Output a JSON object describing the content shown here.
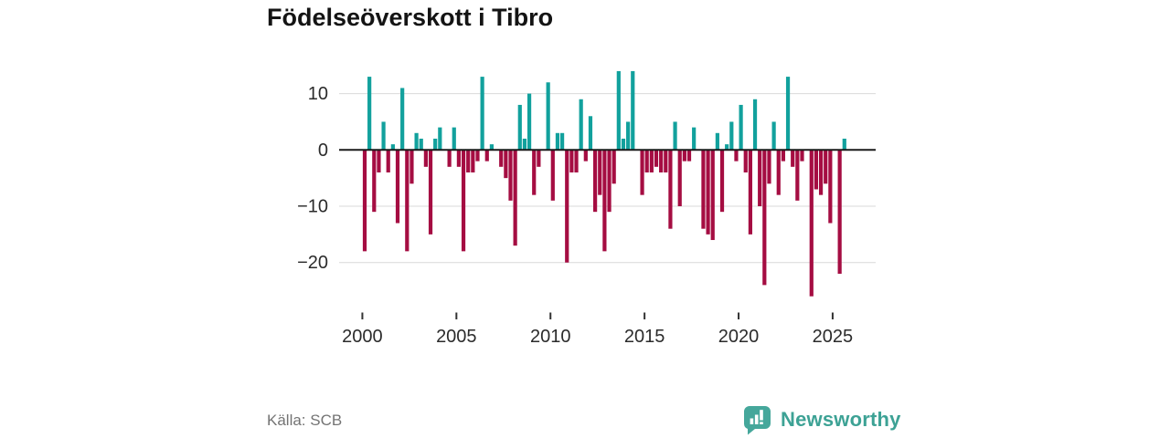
{
  "title": "Födelseöverskott i Tibro",
  "source": "Källa: SCB",
  "branding": {
    "name": "Newsworthy"
  },
  "y_axis": {
    "ticks": [
      {
        "label": "10",
        "value": 10
      },
      {
        "label": "0",
        "value": 0
      },
      {
        "label": "−10",
        "value": -10
      },
      {
        "label": "−20",
        "value": -20
      }
    ]
  },
  "x_axis": {
    "ticks": [
      {
        "label": "2000",
        "year": 2000
      },
      {
        "label": "2005",
        "year": 2005
      },
      {
        "label": "2010",
        "year": 2010
      },
      {
        "label": "2015",
        "year": 2015
      },
      {
        "label": "2020",
        "year": 2020
      },
      {
        "label": "2025",
        "year": 2025
      }
    ]
  },
  "chart_data": {
    "type": "bar",
    "title": "Födelseöverskott i Tibro",
    "frequency": "quarterly",
    "start_period": "2000Q1",
    "end_period": "2025Q3",
    "xlabel": "",
    "ylabel": "",
    "ylim": [
      -27,
      15
    ],
    "grid": true,
    "legend": "none",
    "positive_color": "#12a19d",
    "negative_color": "#a50d42",
    "values": [
      -18,
      13,
      -11,
      -4,
      5,
      -4,
      1,
      -13,
      11,
      -18,
      -6,
      3,
      2,
      -3,
      -15,
      2,
      4,
      0,
      -3,
      4,
      -3,
      -18,
      -4,
      -4,
      -2,
      13,
      -2,
      1,
      0,
      -3,
      -5,
      -9,
      -17,
      8,
      2,
      10,
      -8,
      -3,
      0,
      12,
      -9,
      3,
      3,
      -20,
      -4,
      -4,
      9,
      -2,
      6,
      -11,
      -8,
      -18,
      -11,
      -6,
      14,
      2,
      5,
      14,
      0,
      -8,
      -4,
      -4,
      -3,
      -4,
      -4,
      -14,
      5,
      -10,
      -2,
      -2,
      4,
      0,
      -14,
      -15,
      -16,
      3,
      -11,
      1,
      5,
      -2,
      8,
      -4,
      -15,
      9,
      -10,
      -24,
      -6,
      5,
      -8,
      -2,
      13,
      -3,
      -9,
      -2,
      0,
      -26,
      -7,
      -8,
      -6,
      -13,
      0,
      -22,
      2
    ]
  },
  "style_colors": {
    "grid": "#d9d9d9",
    "zero_line": "#1a1a1a",
    "axis_text": "#2b2b2b",
    "logo_bubble": "#45a79b",
    "logo_glyph": "#ffffff"
  }
}
